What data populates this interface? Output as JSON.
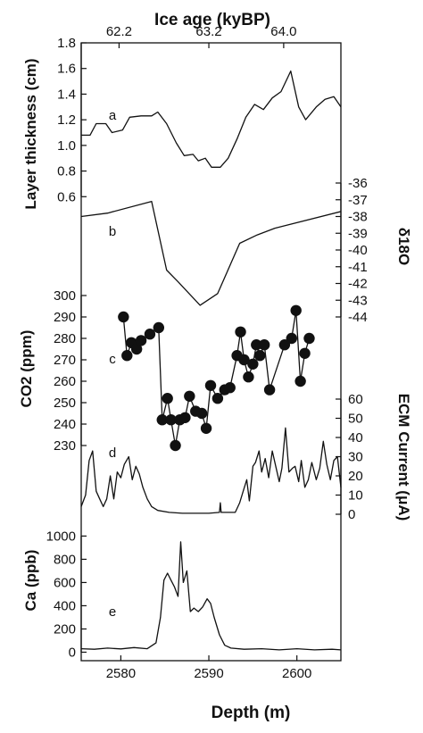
{
  "chart_data": {
    "type": "line",
    "title": "Ice age (kyBP)",
    "top_axis": {
      "label": "Ice age (kyBP)",
      "ticks": [
        {
          "depth": 2579.8,
          "label": "62.2"
        },
        {
          "depth": 2590.0,
          "label": "63.2"
        },
        {
          "depth": 2598.5,
          "label": "64.0"
        }
      ]
    },
    "x": {
      "label": "Depth (m)",
      "range": [
        2575.5,
        2605
      ],
      "ticks": [
        2580,
        2590,
        2600
      ]
    },
    "panels": [
      {
        "id": "a",
        "label": "a",
        "ylabel": "Layer thickness (cm)",
        "axis": "left",
        "ylim": [
          0.4,
          1.8
        ],
        "ticks": [
          0.6,
          0.8,
          1.0,
          1.2,
          1.4,
          1.6,
          1.8
        ],
        "tick_labels": [
          "0.6",
          "0.8",
          "1.0",
          "1.2",
          "1.4",
          "1.6",
          "1.8"
        ],
        "series": [
          {
            "style": "line",
            "points": [
              [
                2575.5,
                1.08
              ],
              [
                2576.5,
                1.08
              ],
              [
                2577.2,
                1.17
              ],
              [
                2578.3,
                1.17
              ],
              [
                2579.0,
                1.1
              ],
              [
                2580.2,
                1.12
              ],
              [
                2581.0,
                1.22
              ],
              [
                2582.3,
                1.23
              ],
              [
                2583.5,
                1.23
              ],
              [
                2584.2,
                1.26
              ],
              [
                2585.2,
                1.17
              ],
              [
                2586.3,
                1.02
              ],
              [
                2587.2,
                0.92
              ],
              [
                2588.2,
                0.93
              ],
              [
                2588.8,
                0.88
              ],
              [
                2589.6,
                0.9
              ],
              [
                2590.3,
                0.83
              ],
              [
                2591.3,
                0.83
              ],
              [
                2592.2,
                0.9
              ],
              [
                2593.2,
                1.05
              ],
              [
                2594.2,
                1.22
              ],
              [
                2595.2,
                1.32
              ],
              [
                2596.2,
                1.28
              ],
              [
                2597.2,
                1.37
              ],
              [
                2598.2,
                1.42
              ],
              [
                2599.3,
                1.58
              ],
              [
                2600.2,
                1.3
              ],
              [
                2601.0,
                1.2
              ],
              [
                2602.2,
                1.3
              ],
              [
                2603.2,
                1.36
              ],
              [
                2604.2,
                1.38
              ],
              [
                2605.0,
                1.3
              ]
            ]
          }
        ]
      },
      {
        "id": "b",
        "label": "b",
        "ylabel": "δ18O",
        "axis": "right",
        "ylim": [
          -44,
          -36
        ],
        "ticks": [
          -36,
          -37,
          -38,
          -39,
          -40,
          -41,
          -42,
          -43,
          -44
        ],
        "tick_labels": [
          "-36",
          "-37",
          "-38",
          "-39",
          "-40",
          "-41",
          "-42",
          "-43",
          "-44"
        ],
        "series": [
          {
            "style": "line",
            "points": [
              [
                2575.5,
                -38.0
              ],
              [
                2578.5,
                -37.8
              ],
              [
                2583.5,
                -37.1
              ],
              [
                2585.2,
                -41.2
              ],
              [
                2586.5,
                -41.9
              ],
              [
                2589.0,
                -43.3
              ],
              [
                2591.0,
                -42.6
              ],
              [
                2593.5,
                -39.6
              ],
              [
                2595.5,
                -39.1
              ],
              [
                2597.5,
                -38.7
              ],
              [
                2605.0,
                -37.7
              ]
            ]
          }
        ]
      },
      {
        "id": "c",
        "label": "c",
        "ylabel": "CO2 (ppm)",
        "axis": "left",
        "ylim": [
          220,
          310
        ],
        "ticks": [
          230,
          240,
          250,
          260,
          270,
          280,
          290,
          300
        ],
        "tick_labels": [
          "230",
          "240",
          "250",
          "260",
          "270",
          "280",
          "290",
          "300"
        ],
        "series": [
          {
            "style": "line-markers",
            "points": [
              [
                2580.3,
                290
              ],
              [
                2580.7,
                272
              ],
              [
                2581.2,
                278
              ],
              [
                2581.8,
                275
              ],
              [
                2582.3,
                279
              ],
              [
                2583.3,
                282
              ],
              [
                2584.3,
                285
              ],
              [
                2584.7,
                242
              ],
              [
                2585.3,
                252
              ],
              [
                2585.7,
                242
              ],
              [
                2586.2,
                230
              ],
              [
                2586.7,
                242
              ],
              [
                2587.3,
                243
              ],
              [
                2587.8,
                253
              ],
              [
                2588.5,
                246
              ],
              [
                2589.2,
                245
              ],
              [
                2589.7,
                238
              ],
              [
                2590.2,
                258
              ],
              [
                2591.0,
                252
              ],
              [
                2591.8,
                256
              ],
              [
                2592.4,
                257
              ],
              [
                2593.2,
                272
              ],
              [
                2593.6,
                283
              ],
              [
                2594.0,
                270
              ],
              [
                2594.5,
                262
              ],
              [
                2595.0,
                268
              ],
              [
                2595.4,
                277
              ],
              [
                2595.8,
                272
              ],
              [
                2596.3,
                277
              ],
              [
                2596.9,
                256
              ],
              [
                2598.6,
                277
              ],
              [
                2599.4,
                280
              ],
              [
                2599.9,
                293
              ],
              [
                2600.4,
                260
              ],
              [
                2600.9,
                273
              ],
              [
                2601.4,
                280
              ]
            ]
          }
        ]
      },
      {
        "id": "d",
        "label": "d",
        "ylabel": "ECM Current (μA)",
        "axis": "right",
        "ylim": [
          0,
          60
        ],
        "ticks": [
          0,
          10,
          20,
          30,
          40,
          50,
          60
        ],
        "tick_labels": [
          "0",
          "10",
          "20",
          "30",
          "40",
          "50",
          "60"
        ],
        "series": [
          {
            "style": "line",
            "points": [
              [
                2575.5,
                4
              ],
              [
                2576.0,
                10
              ],
              [
                2576.4,
                28
              ],
              [
                2576.8,
                33
              ],
              [
                2577.2,
                12
              ],
              [
                2577.6,
                8
              ],
              [
                2578.0,
                4
              ],
              [
                2578.4,
                8
              ],
              [
                2578.8,
                20
              ],
              [
                2579.2,
                8
              ],
              [
                2579.6,
                22
              ],
              [
                2580.0,
                19
              ],
              [
                2580.4,
                26
              ],
              [
                2580.9,
                30
              ],
              [
                2581.3,
                18
              ],
              [
                2581.7,
                25
              ],
              [
                2582.1,
                21
              ],
              [
                2582.5,
                14
              ],
              [
                2583.0,
                8
              ],
              [
                2583.5,
                4
              ],
              [
                2584.2,
                2
              ],
              [
                2585.5,
                1
              ],
              [
                2587.0,
                0.5
              ],
              [
                2590.0,
                0.5
              ],
              [
                2591.2,
                1
              ],
              [
                2591.3,
                6
              ],
              [
                2591.4,
                1
              ],
              [
                2593.0,
                1
              ],
              [
                2593.5,
                6
              ],
              [
                2593.9,
                12
              ],
              [
                2594.3,
                18
              ],
              [
                2594.6,
                7
              ],
              [
                2595.0,
                25
              ],
              [
                2595.3,
                27
              ],
              [
                2595.7,
                33
              ],
              [
                2596.0,
                22
              ],
              [
                2596.4,
                29
              ],
              [
                2596.8,
                19
              ],
              [
                2597.2,
                33
              ],
              [
                2597.6,
                25
              ],
              [
                2598.0,
                17
              ],
              [
                2598.3,
                24
              ],
              [
                2598.7,
                45
              ],
              [
                2599.1,
                22
              ],
              [
                2599.5,
                24
              ],
              [
                2599.8,
                25
              ],
              [
                2600.2,
                17
              ],
              [
                2600.5,
                28
              ],
              [
                2600.9,
                14
              ],
              [
                2601.3,
                18
              ],
              [
                2601.7,
                27
              ],
              [
                2602.2,
                18
              ],
              [
                2602.6,
                24
              ],
              [
                2603.0,
                38
              ],
              [
                2603.4,
                26
              ],
              [
                2603.8,
                18
              ],
              [
                2604.2,
                28
              ],
              [
                2604.6,
                30
              ],
              [
                2605.0,
                14
              ]
            ]
          }
        ]
      },
      {
        "id": "e",
        "label": "e",
        "ylabel": "Ca (ppb)",
        "axis": "left",
        "ylim": [
          -150,
          1080
        ],
        "ticks": [
          0,
          200,
          400,
          600,
          800,
          1000
        ],
        "tick_labels": [
          "0",
          "200",
          "400",
          "600",
          "800",
          "1000"
        ],
        "series": [
          {
            "style": "line",
            "points": [
              [
                2575.5,
                30
              ],
              [
                2577.0,
                25
              ],
              [
                2578.5,
                35
              ],
              [
                2580.0,
                28
              ],
              [
                2581.5,
                40
              ],
              [
                2583.0,
                30
              ],
              [
                2584.0,
                80
              ],
              [
                2584.5,
                300
              ],
              [
                2584.9,
                620
              ],
              [
                2585.3,
                680
              ],
              [
                2585.7,
                620
              ],
              [
                2586.1,
                560
              ],
              [
                2586.5,
                480
              ],
              [
                2586.8,
                950
              ],
              [
                2587.1,
                600
              ],
              [
                2587.5,
                700
              ],
              [
                2587.9,
                350
              ],
              [
                2588.3,
                380
              ],
              [
                2588.8,
                350
              ],
              [
                2589.3,
                390
              ],
              [
                2589.8,
                460
              ],
              [
                2590.2,
                420
              ],
              [
                2590.6,
                300
              ],
              [
                2591.2,
                150
              ],
              [
                2591.8,
                60
              ],
              [
                2592.5,
                35
              ],
              [
                2594.0,
                25
              ],
              [
                2596.0,
                30
              ],
              [
                2598.0,
                20
              ],
              [
                2600.0,
                30
              ],
              [
                2602.0,
                20
              ],
              [
                2604.0,
                25
              ],
              [
                2605.0,
                20
              ]
            ]
          }
        ]
      }
    ],
    "grid": false,
    "legend": "none"
  }
}
